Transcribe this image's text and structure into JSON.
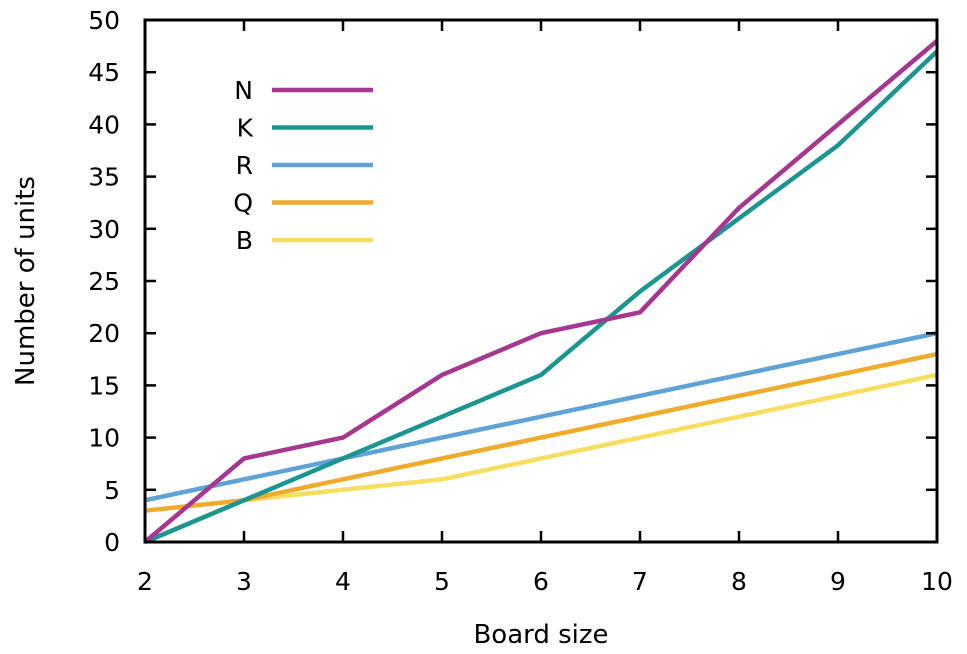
{
  "chart_data": {
    "type": "line",
    "xlabel": "Board size",
    "ylabel": "Number of units",
    "xlim": [
      2,
      10
    ],
    "ylim": [
      0,
      50
    ],
    "xticks": [
      2,
      3,
      4,
      5,
      6,
      7,
      8,
      9,
      10
    ],
    "yticks": [
      0,
      5,
      10,
      15,
      20,
      25,
      30,
      35,
      40,
      45,
      50
    ],
    "grid": false,
    "legend_position": "top-left",
    "x": [
      2,
      3,
      4,
      5,
      6,
      7,
      8,
      9,
      10
    ],
    "series": [
      {
        "name": "N",
        "color": "#a6378f",
        "values": [
          0,
          8,
          10,
          16,
          20,
          22,
          32,
          40,
          48
        ]
      },
      {
        "name": "K",
        "color": "#1c9590",
        "values": [
          0,
          4,
          8,
          12,
          16,
          24,
          31,
          38,
          47
        ]
      },
      {
        "name": "R",
        "color": "#5fa3d6",
        "values": [
          4,
          6,
          8,
          10,
          12,
          14,
          16,
          18,
          20
        ]
      },
      {
        "name": "Q",
        "color": "#f0ab2c",
        "values": [
          3,
          4,
          6,
          8,
          10,
          12,
          14,
          16,
          18
        ]
      },
      {
        "name": "B",
        "color": "#f5de60",
        "values": [
          0,
          4,
          5,
          6,
          8,
          10,
          12,
          14,
          16
        ]
      }
    ]
  }
}
